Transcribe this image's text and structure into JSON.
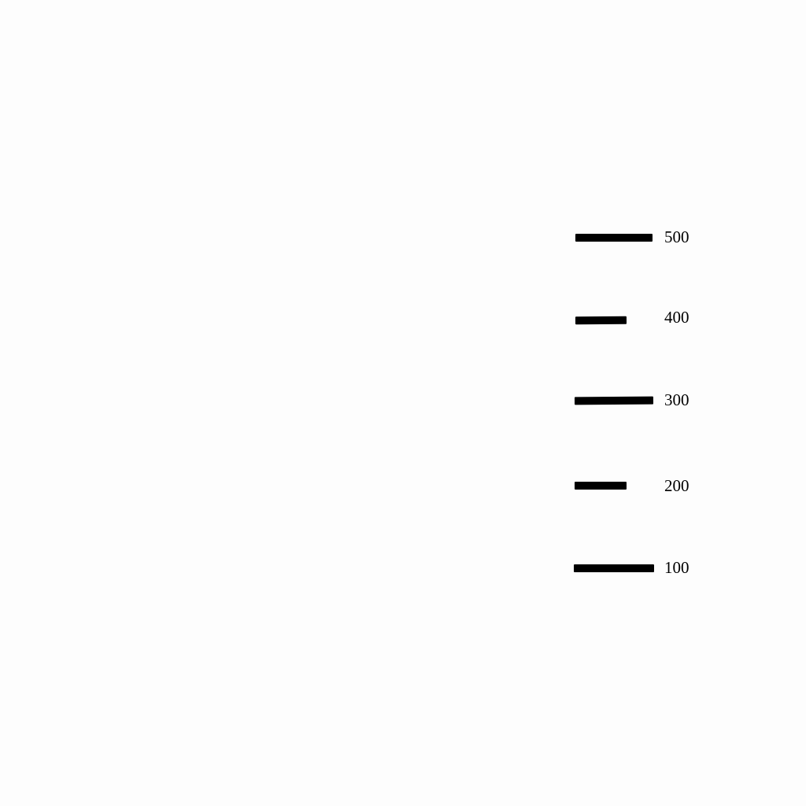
{
  "scale": {
    "ticks": [
      {
        "label": "500"
      },
      {
        "label": "400"
      },
      {
        "label": "300"
      },
      {
        "label": "200"
      },
      {
        "label": "100"
      }
    ]
  },
  "colors": {
    "background": "#fdfdfd",
    "mark": "#000000"
  }
}
